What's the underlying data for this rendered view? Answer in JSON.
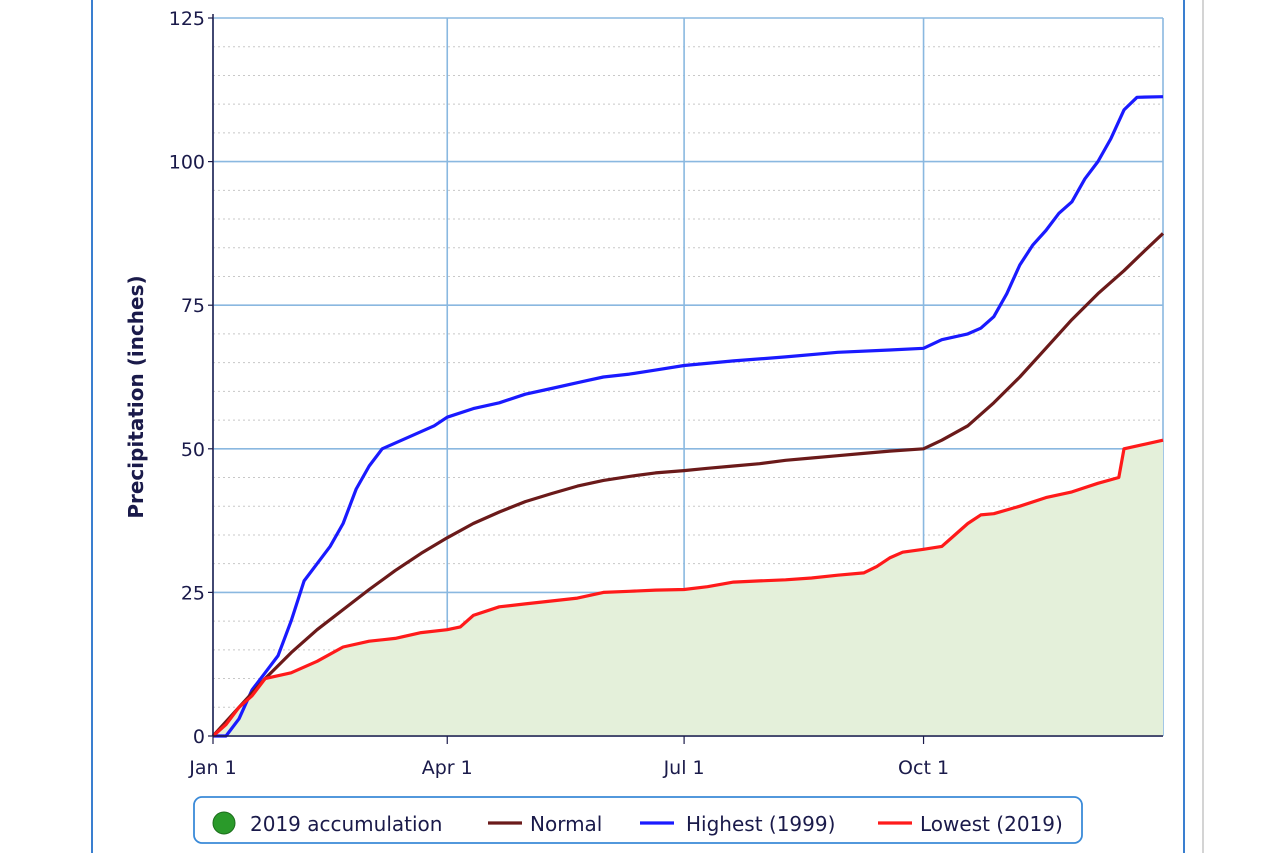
{
  "chart_data": {
    "type": "line",
    "ylabel": "Precipitation (inches)",
    "xlabel": "",
    "ylim": [
      0,
      125
    ],
    "xlim": [
      "Jan 1",
      "Dec 31"
    ],
    "y_ticks": [
      0,
      25,
      50,
      75,
      100,
      125
    ],
    "x_ticks": [
      {
        "label": "Jan 1",
        "day": 0
      },
      {
        "label": "Apr 1",
        "day": 90
      },
      {
        "label": "Jul 1",
        "day": 181
      },
      {
        "label": "Oct 1",
        "day": 273
      }
    ],
    "grid": true,
    "legend_position": "bottom",
    "legend": [
      {
        "name": "2019 accumulation",
        "color": "#2a9a2a",
        "marker": "circle"
      },
      {
        "name": "Normal",
        "color": "#6b1a1a",
        "marker": "line"
      },
      {
        "name": "Highest (1999)",
        "color": "#1a1aff",
        "marker": "line"
      },
      {
        "name": "Lowest (2019)",
        "color": "#ff1a1a",
        "marker": "line"
      }
    ],
    "series": [
      {
        "name": "Normal",
        "color": "#6b1a1a",
        "points": [
          [
            0,
            0
          ],
          [
            10,
            5
          ],
          [
            20,
            10
          ],
          [
            30,
            14.5
          ],
          [
            40,
            18.5
          ],
          [
            50,
            22
          ],
          [
            60,
            25.5
          ],
          [
            70,
            28.8
          ],
          [
            80,
            31.8
          ],
          [
            90,
            34.5
          ],
          [
            100,
            37
          ],
          [
            110,
            39
          ],
          [
            120,
            40.8
          ],
          [
            130,
            42.2
          ],
          [
            140,
            43.5
          ],
          [
            150,
            44.5
          ],
          [
            160,
            45.2
          ],
          [
            170,
            45.8
          ],
          [
            181,
            46.2
          ],
          [
            190,
            46.6
          ],
          [
            200,
            47
          ],
          [
            210,
            47.4
          ],
          [
            220,
            48
          ],
          [
            230,
            48.4
          ],
          [
            240,
            48.8
          ],
          [
            250,
            49.2
          ],
          [
            260,
            49.6
          ],
          [
            273,
            50
          ],
          [
            280,
            51.5
          ],
          [
            290,
            54
          ],
          [
            300,
            58
          ],
          [
            310,
            62.5
          ],
          [
            320,
            67.5
          ],
          [
            330,
            72.5
          ],
          [
            340,
            77
          ],
          [
            350,
            81
          ],
          [
            358,
            84.5
          ],
          [
            365,
            87.5
          ]
        ]
      },
      {
        "name": "Highest (1999)",
        "color": "#1a1aff",
        "points": [
          [
            0,
            0
          ],
          [
            5,
            0
          ],
          [
            10,
            3
          ],
          [
            15,
            8
          ],
          [
            20,
            11
          ],
          [
            25,
            14
          ],
          [
            30,
            20
          ],
          [
            35,
            27
          ],
          [
            40,
            30
          ],
          [
            45,
            33
          ],
          [
            50,
            37
          ],
          [
            55,
            43
          ],
          [
            60,
            47
          ],
          [
            65,
            50
          ],
          [
            75,
            52
          ],
          [
            85,
            54
          ],
          [
            90,
            55.5
          ],
          [
            100,
            57
          ],
          [
            110,
            58
          ],
          [
            120,
            59.5
          ],
          [
            130,
            60.5
          ],
          [
            140,
            61.5
          ],
          [
            150,
            62.5
          ],
          [
            160,
            63
          ],
          [
            170,
            63.7
          ],
          [
            181,
            64.5
          ],
          [
            200,
            65.3
          ],
          [
            220,
            66
          ],
          [
            240,
            66.8
          ],
          [
            260,
            67.2
          ],
          [
            273,
            67.5
          ],
          [
            280,
            69
          ],
          [
            290,
            70
          ],
          [
            295,
            71
          ],
          [
            300,
            73
          ],
          [
            305,
            77
          ],
          [
            310,
            82
          ],
          [
            315,
            85.5
          ],
          [
            320,
            88
          ],
          [
            325,
            91
          ],
          [
            330,
            93
          ],
          [
            335,
            97
          ],
          [
            340,
            100
          ],
          [
            345,
            104
          ],
          [
            350,
            109
          ],
          [
            355,
            111.2
          ],
          [
            365,
            111.3
          ]
        ]
      },
      {
        "name": "Lowest (2019)",
        "color": "#ff1a1a",
        "points": [
          [
            0,
            0
          ],
          [
            5,
            2
          ],
          [
            10,
            5
          ],
          [
            15,
            7
          ],
          [
            20,
            10
          ],
          [
            30,
            11
          ],
          [
            40,
            13
          ],
          [
            50,
            15.5
          ],
          [
            60,
            16.5
          ],
          [
            70,
            17
          ],
          [
            80,
            18
          ],
          [
            90,
            18.5
          ],
          [
            95,
            19
          ],
          [
            100,
            21
          ],
          [
            110,
            22.5
          ],
          [
            120,
            23
          ],
          [
            130,
            23.5
          ],
          [
            140,
            24
          ],
          [
            150,
            25
          ],
          [
            160,
            25.2
          ],
          [
            170,
            25.4
          ],
          [
            181,
            25.5
          ],
          [
            190,
            26
          ],
          [
            200,
            26.8
          ],
          [
            210,
            27
          ],
          [
            220,
            27.2
          ],
          [
            230,
            27.5
          ],
          [
            240,
            28
          ],
          [
            250,
            28.4
          ],
          [
            255,
            29.5
          ],
          [
            260,
            31
          ],
          [
            265,
            32
          ],
          [
            273,
            32.5
          ],
          [
            280,
            33
          ],
          [
            285,
            35
          ],
          [
            290,
            37
          ],
          [
            295,
            38.5
          ],
          [
            300,
            38.7
          ],
          [
            310,
            40
          ],
          [
            320,
            41.5
          ],
          [
            330,
            42.5
          ],
          [
            340,
            44
          ],
          [
            348,
            45
          ],
          [
            350,
            50
          ],
          [
            355,
            50.5
          ],
          [
            365,
            51.5
          ]
        ]
      }
    ]
  }
}
